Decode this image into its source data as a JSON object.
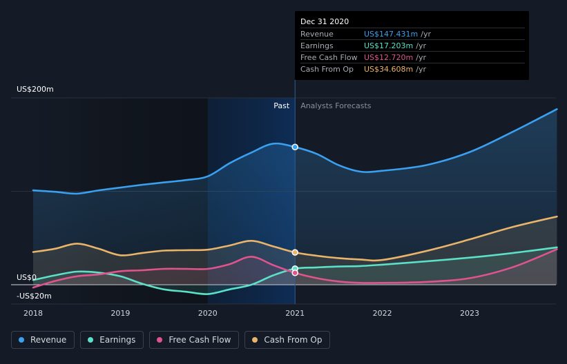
{
  "tooltip": {
    "date": "Dec 31 2020",
    "rows": [
      {
        "label": "Revenue",
        "value": "US$147.431m",
        "unit": "/yr",
        "color": "#3aa0ef"
      },
      {
        "label": "Earnings",
        "value": "US$17.203m",
        "unit": "/yr",
        "color": "#5ce0c8"
      },
      {
        "label": "Free Cash Flow",
        "value": "US$12.720m",
        "unit": "/yr",
        "color": "#e0548e"
      },
      {
        "label": "Cash From Op",
        "value": "US$34.608m",
        "unit": "/yr",
        "color": "#eab46a"
      }
    ]
  },
  "legend": [
    {
      "label": "Revenue",
      "color": "#3aa0ef"
    },
    {
      "label": "Earnings",
      "color": "#5ce0c8"
    },
    {
      "label": "Free Cash Flow",
      "color": "#e0548e"
    },
    {
      "label": "Cash From Op",
      "color": "#eab46a"
    }
  ],
  "chart_data": {
    "type": "line",
    "y_ticks": [
      {
        "value": 200,
        "label": "US$200m"
      },
      {
        "value": 0,
        "label": "US$0"
      },
      {
        "value": -20,
        "label": "-US$20m"
      }
    ],
    "x_ticks": [
      {
        "x": 2018,
        "label": "2018"
      },
      {
        "x": 2019,
        "label": "2019"
      },
      {
        "x": 2020,
        "label": "2020"
      },
      {
        "x": 2021,
        "label": "2021"
      },
      {
        "x": 2022,
        "label": "2022"
      },
      {
        "x": 2023,
        "label": "2023"
      }
    ],
    "xlim": [
      2017.77,
      2024.0
    ],
    "ylim": [
      -20,
      200
    ],
    "divider_x": 2021.0,
    "past_label": "Past",
    "forecast_label": "Analysts Forecasts",
    "highlight_start": 2020.0,
    "series": [
      {
        "name": "Revenue",
        "color": "#3aa0ef",
        "points": [
          [
            2018.0,
            101
          ],
          [
            2018.25,
            99.5
          ],
          [
            2018.5,
            97.5
          ],
          [
            2018.75,
            101
          ],
          [
            2019.0,
            104
          ],
          [
            2019.25,
            107
          ],
          [
            2019.5,
            109.5
          ],
          [
            2019.75,
            112
          ],
          [
            2020.0,
            116
          ],
          [
            2020.25,
            130
          ],
          [
            2020.5,
            141.5
          ],
          [
            2020.75,
            151
          ],
          [
            2021.0,
            147.4
          ],
          [
            2021.25,
            140
          ],
          [
            2021.5,
            128
          ],
          [
            2021.75,
            121
          ],
          [
            2022.0,
            122
          ],
          [
            2022.5,
            128
          ],
          [
            2023.0,
            142
          ],
          [
            2023.5,
            164
          ],
          [
            2024.0,
            188
          ]
        ]
      },
      {
        "name": "Earnings",
        "color": "#5ce0c8",
        "points": [
          [
            2018.0,
            5
          ],
          [
            2018.25,
            10
          ],
          [
            2018.5,
            14
          ],
          [
            2018.75,
            13
          ],
          [
            2019.0,
            9
          ],
          [
            2019.25,
            1
          ],
          [
            2019.5,
            -5
          ],
          [
            2019.75,
            -7.5
          ],
          [
            2020.0,
            -10
          ],
          [
            2020.25,
            -5
          ],
          [
            2020.5,
            0
          ],
          [
            2020.75,
            10
          ],
          [
            2021.0,
            17.2
          ],
          [
            2021.25,
            18.5
          ],
          [
            2021.5,
            19.5
          ],
          [
            2021.75,
            20
          ],
          [
            2022.0,
            21.5
          ],
          [
            2022.5,
            25
          ],
          [
            2023.0,
            29
          ],
          [
            2023.5,
            34
          ],
          [
            2024.0,
            40
          ]
        ]
      },
      {
        "name": "Free Cash Flow",
        "color": "#e0548e",
        "points": [
          [
            2018.0,
            -3
          ],
          [
            2018.25,
            4
          ],
          [
            2018.5,
            9
          ],
          [
            2018.75,
            11
          ],
          [
            2019.0,
            14.5
          ],
          [
            2019.25,
            15.5
          ],
          [
            2019.5,
            17
          ],
          [
            2019.75,
            17
          ],
          [
            2020.0,
            17
          ],
          [
            2020.25,
            22
          ],
          [
            2020.5,
            30
          ],
          [
            2020.75,
            21
          ],
          [
            2021.0,
            12.7
          ],
          [
            2021.25,
            7
          ],
          [
            2021.5,
            3.5
          ],
          [
            2021.75,
            2
          ],
          [
            2022.0,
            2
          ],
          [
            2022.5,
            3
          ],
          [
            2023.0,
            7
          ],
          [
            2023.5,
            19
          ],
          [
            2024.0,
            38
          ]
        ]
      },
      {
        "name": "Cash From Op",
        "color": "#eab46a",
        "points": [
          [
            2018.0,
            35
          ],
          [
            2018.25,
            38.5
          ],
          [
            2018.5,
            44
          ],
          [
            2018.75,
            38.5
          ],
          [
            2019.0,
            31.5
          ],
          [
            2019.25,
            34
          ],
          [
            2019.5,
            36.5
          ],
          [
            2019.75,
            37
          ],
          [
            2020.0,
            37.5
          ],
          [
            2020.25,
            42
          ],
          [
            2020.5,
            47
          ],
          [
            2020.75,
            41
          ],
          [
            2021.0,
            34.6
          ],
          [
            2021.25,
            31
          ],
          [
            2021.5,
            28.5
          ],
          [
            2021.75,
            27
          ],
          [
            2022.0,
            26.5
          ],
          [
            2022.5,
            36
          ],
          [
            2023.0,
            48.5
          ],
          [
            2023.5,
            62
          ],
          [
            2024.0,
            73
          ]
        ]
      }
    ]
  }
}
